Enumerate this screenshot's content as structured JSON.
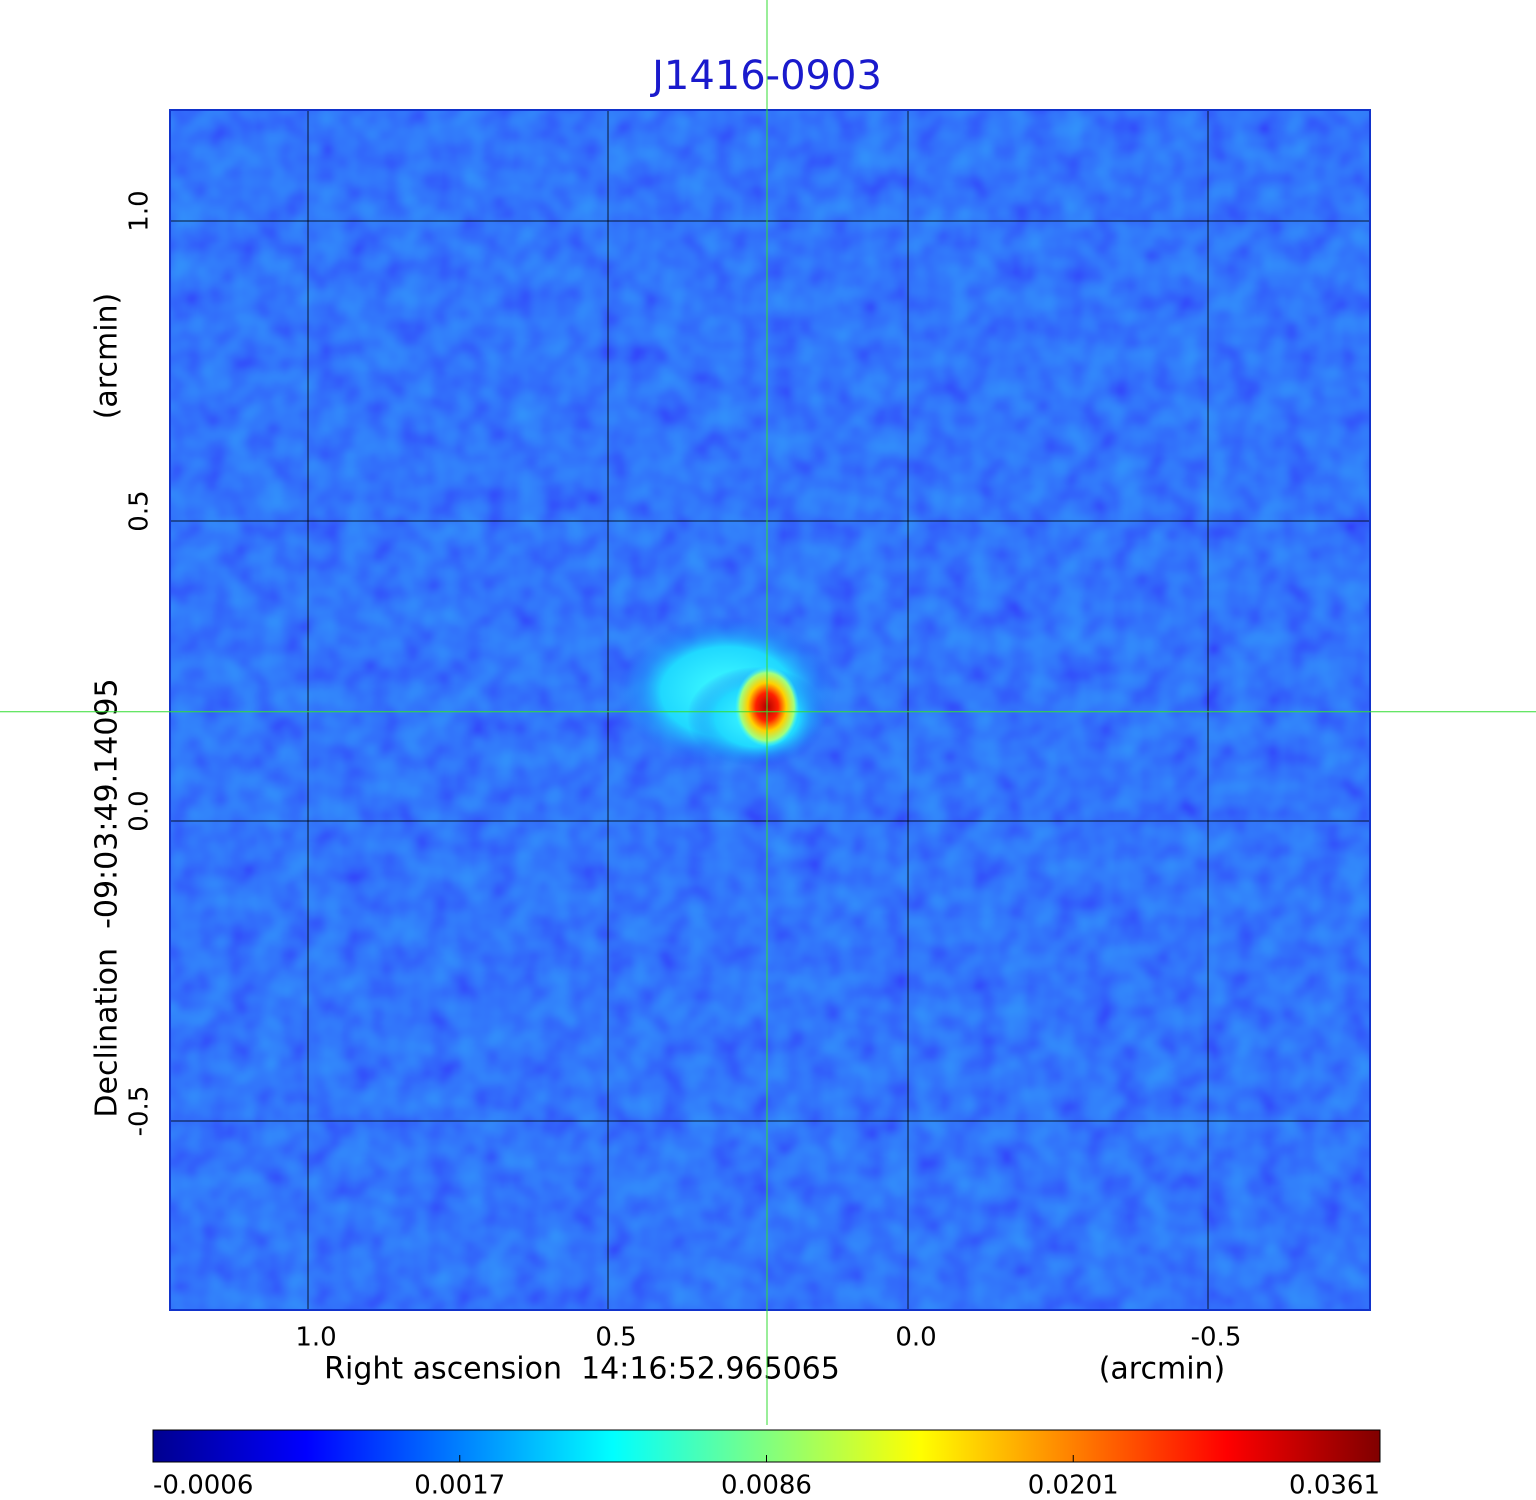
{
  "chart_data": {
    "type": "image",
    "title": "J1416-0903",
    "xlabel": "Right ascension  14:16:52.965065",
    "xunit": "(arcmin)",
    "ylabel": "Declination  -09:03:49.14095",
    "yunit": "(arcmin)",
    "xlim": [
      1.23,
      -0.77
    ],
    "ylim": [
      -0.815,
      1.185
    ],
    "xticks": [
      {
        "value": 1,
        "label": "1.0"
      },
      0.5,
      {
        "value": 0,
        "label": "0.0"
      },
      -0.5
    ],
    "yticks": [
      {
        "value": 1,
        "label": "1.0"
      },
      0.5,
      {
        "value": 0,
        "label": "0.0"
      },
      -0.5
    ],
    "grid": true,
    "crosshair": {
      "x": 0.235,
      "y": 0.182,
      "color": "#33dd33"
    },
    "colorbar_ticks": [
      -0.0006,
      0.0017,
      0.0086,
      0.0201,
      0.0361
    ],
    "colormap": [
      "#00008f",
      "#0000ff",
      "#0080ff",
      "#00ffff",
      "#80ff80",
      "#ffff00",
      "#ff8000",
      "#ff0000",
      "#800000"
    ]
  }
}
